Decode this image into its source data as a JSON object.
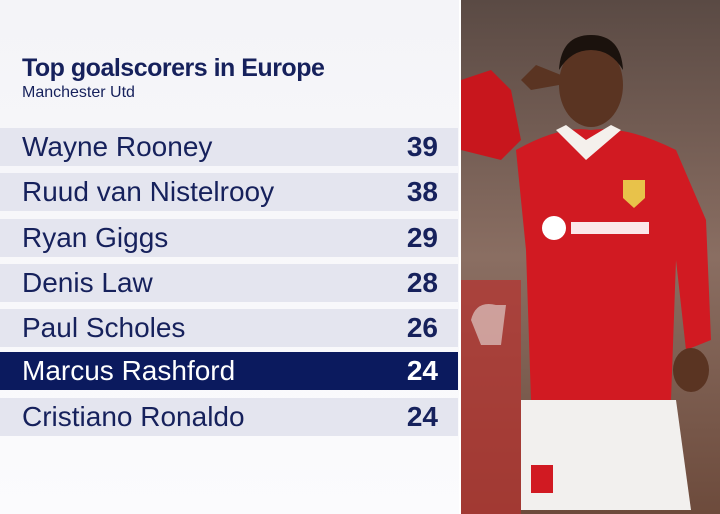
{
  "header": {
    "title": "Top goalscorers in Europe",
    "subtitle": "Manchester Utd"
  },
  "table": {
    "rows": [
      [
        "Wayne Rooney",
        "39"
      ],
      [
        "Ruud van Nistelrooy",
        "38"
      ],
      [
        "Ryan Giggs",
        "29"
      ],
      [
        "Denis Law",
        "28"
      ],
      [
        "Paul Scholes",
        "26"
      ],
      [
        "Marcus Rashford",
        "24"
      ],
      [
        "Cristiano Ronaldo",
        "24"
      ]
    ]
  }
}
